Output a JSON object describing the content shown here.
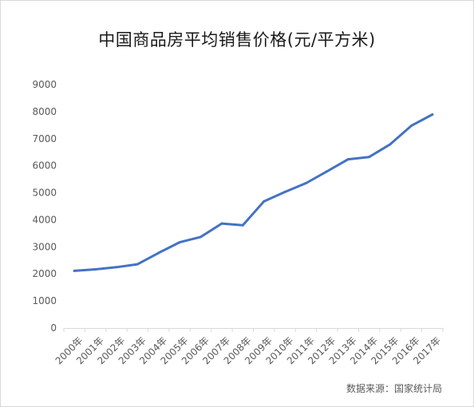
{
  "chart_data": {
    "type": "line",
    "title": "中国商品房平均销售价格(元/平方米)",
    "xlabel": "",
    "ylabel": "",
    "categories": [
      "2000年",
      "2001年",
      "2002年",
      "2003年",
      "2004年",
      "2005年",
      "2006年",
      "2007年",
      "2008年",
      "2009年",
      "2010年",
      "2011年",
      "2012年",
      "2013年",
      "2014年",
      "2015年",
      "2016年",
      "2017年"
    ],
    "series": [
      {
        "values": [
          2112,
          2170,
          2250,
          2359,
          2778,
          3168,
          3367,
          3864,
          3800,
          4681,
          5032,
          5357,
          5791,
          6237,
          6324,
          6793,
          7476,
          7892
        ],
        "color": "#4472c4"
      }
    ],
    "ylim": [
      0,
      9000
    ],
    "yticks": [
      0,
      1000,
      2000,
      3000,
      4000,
      5000,
      6000,
      7000,
      8000,
      9000
    ],
    "grid": false,
    "legend": "none",
    "source": "数据来源：国家统计局"
  }
}
